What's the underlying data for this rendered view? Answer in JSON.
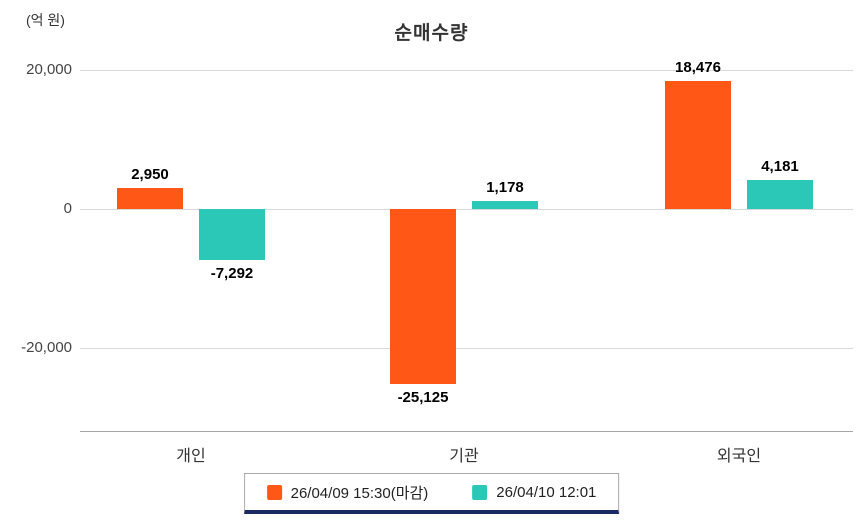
{
  "title": "순매수량",
  "unit_label": "(억 원)",
  "chart_data": {
    "type": "bar",
    "categories": [
      "개인",
      "기관",
      "외국인"
    ],
    "series": [
      {
        "name": "26/04/09 15:30(마감)",
        "color": "#ff5716",
        "values": [
          2950,
          -25125,
          18476
        ]
      },
      {
        "name": "26/04/10 12:01",
        "color": "#2cc8b7",
        "values": [
          -7292,
          1178,
          4181
        ]
      }
    ],
    "value_labels": [
      [
        "2,950",
        "-25,125",
        "18,476"
      ],
      [
        "-7,292",
        "1,178",
        "4,181"
      ]
    ],
    "yticks": [
      {
        "label": "20,000",
        "value": 20000
      },
      {
        "label": "0",
        "value": 0
      },
      {
        "label": "-20,000",
        "value": -20000
      }
    ],
    "ylim": [
      -30000,
      25000
    ],
    "grid": true,
    "legend_position": "bottom",
    "colors": {
      "series1": "#ff5716",
      "series2": "#2cc8b7",
      "legend_underline": "#1b2a63"
    }
  }
}
